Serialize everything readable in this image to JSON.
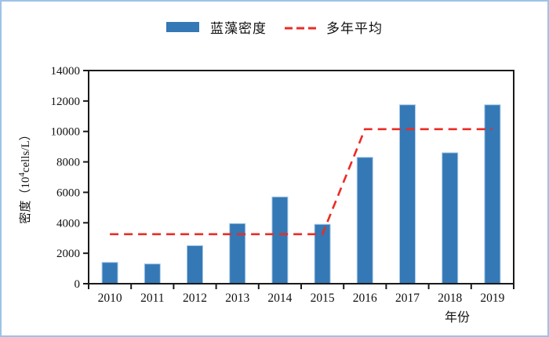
{
  "legend": {
    "items": [
      {
        "label": "蓝藻密度",
        "swatch": "bar",
        "color": "#3478b6"
      },
      {
        "label": "多年平均",
        "swatch": "dashed-line",
        "color": "#ea2c24"
      }
    ]
  },
  "frame": {
    "border_color": "#9dc3e6",
    "background": "#ffffff"
  },
  "chart_data": {
    "type": "bar",
    "title": "",
    "categories": [
      "2010",
      "2011",
      "2012",
      "2013",
      "2014",
      "2015",
      "2016",
      "2017",
      "2018",
      "2019"
    ],
    "series": [
      {
        "name": "蓝藻密度",
        "type": "bar",
        "color": "#3478b6",
        "edge_color": "#a6c9e9",
        "values": [
          1400,
          1300,
          2500,
          3950,
          5700,
          3900,
          8300,
          11750,
          8600,
          11750
        ]
      },
      {
        "name": "多年平均",
        "type": "line",
        "style": "dashed",
        "color": "#ea2c24",
        "values": [
          3250,
          3250,
          3250,
          3250,
          3250,
          3250,
          10150,
          10150,
          10150,
          10150
        ]
      }
    ],
    "xlabel": "年份",
    "ylabel": "密度（10⁴cells/L）",
    "ylabel_parts": {
      "prefix": "密度（10",
      "sup": "4",
      "suffix": "cells/L）"
    },
    "ylim": [
      0,
      14000
    ],
    "yticks": [
      0,
      2000,
      4000,
      6000,
      8000,
      10000,
      12000,
      14000
    ],
    "grid": false,
    "legend_position": "top-center",
    "axis_color": "#1a1a1a"
  }
}
